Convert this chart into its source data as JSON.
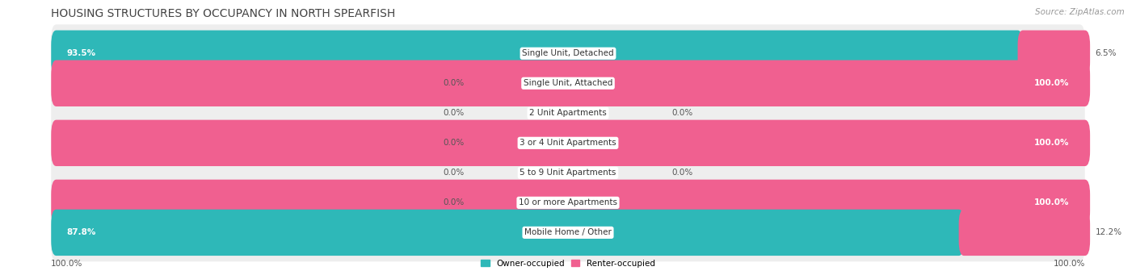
{
  "title": "HOUSING STRUCTURES BY OCCUPANCY IN NORTH SPEARFISH",
  "source": "Source: ZipAtlas.com",
  "categories": [
    "Single Unit, Detached",
    "Single Unit, Attached",
    "2 Unit Apartments",
    "3 or 4 Unit Apartments",
    "5 to 9 Unit Apartments",
    "10 or more Apartments",
    "Mobile Home / Other"
  ],
  "owner_pct": [
    93.5,
    0.0,
    0.0,
    0.0,
    0.0,
    0.0,
    87.8
  ],
  "renter_pct": [
    6.5,
    100.0,
    0.0,
    100.0,
    0.0,
    100.0,
    12.2
  ],
  "owner_color": "#2eb8b8",
  "renter_color": "#f06090",
  "owner_color_light": "#a8dede",
  "renter_color_light": "#f7b8cc",
  "row_bg_color": "#eeeeee",
  "axis_bottom_left": "100.0%",
  "axis_bottom_right": "100.0%",
  "title_fontsize": 10,
  "source_fontsize": 7.5,
  "label_fontsize": 7.5,
  "category_fontsize": 7.5
}
